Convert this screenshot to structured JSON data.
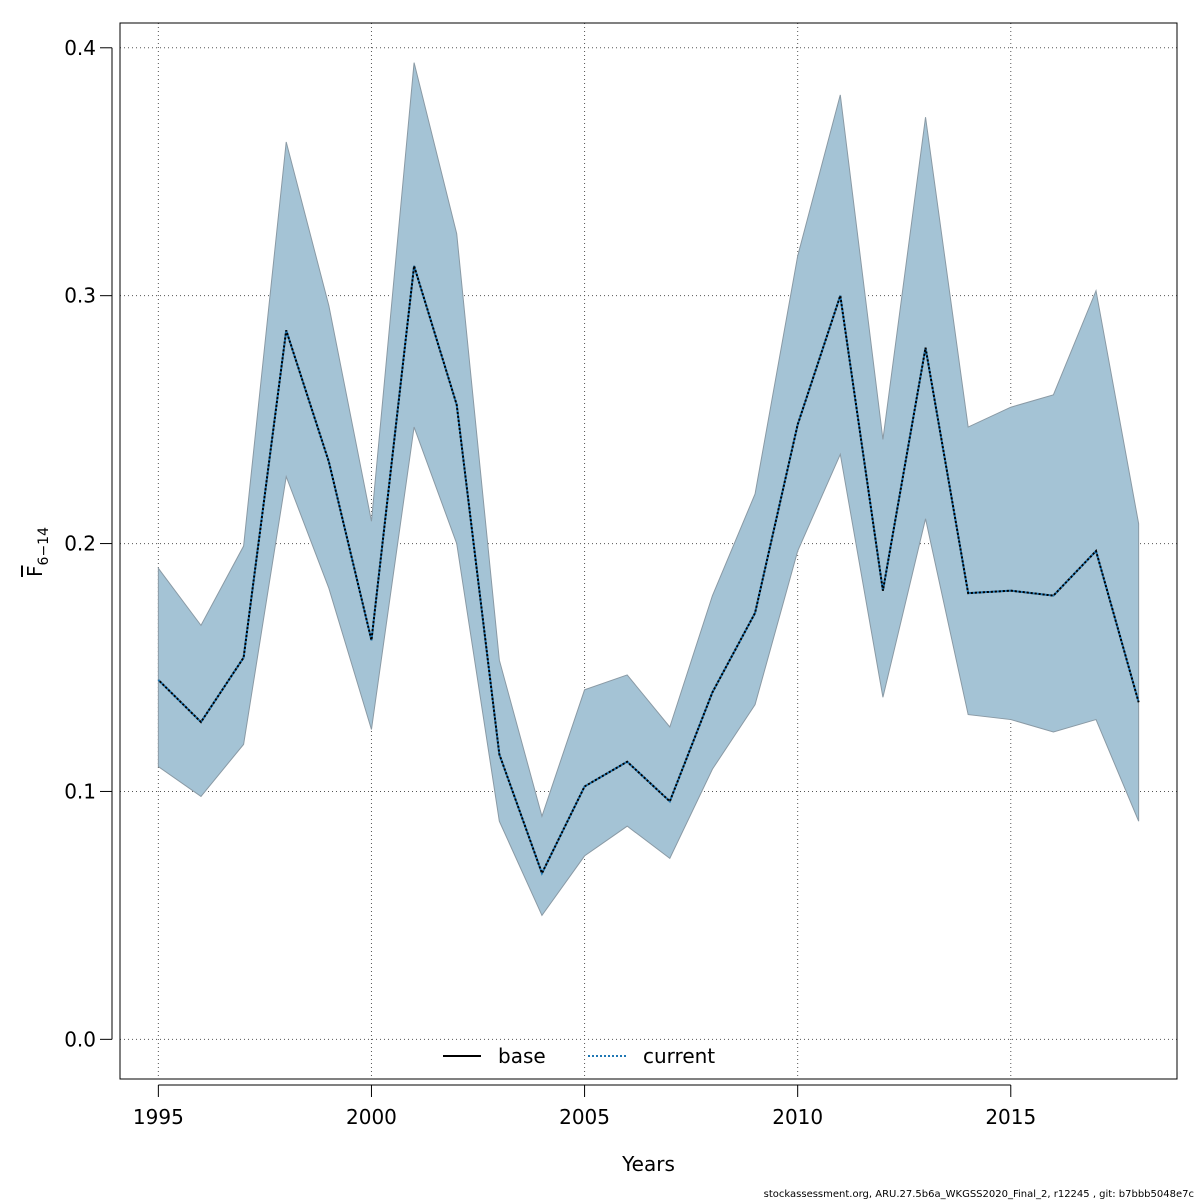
{
  "chart_data": {
    "type": "line",
    "xlabel": "Years",
    "ylabel": {
      "main": "F",
      "sub": "6−14"
    },
    "xlim": [
      1994.1,
      2018.9
    ],
    "ylim": [
      -0.016,
      0.41
    ],
    "xticks": [
      1995,
      2000,
      2005,
      2010,
      2015
    ],
    "yticks": [
      0.0,
      0.1,
      0.2,
      0.3,
      0.4
    ],
    "ytick_labels": [
      "0.0",
      "0.1",
      "0.2",
      "0.3",
      "0.4"
    ],
    "grid": true,
    "legend_position": "bottom-center",
    "x": [
      1995,
      1996,
      1997,
      1998,
      1999,
      2000,
      2001,
      2002,
      2003,
      2004,
      2005,
      2006,
      2007,
      2008,
      2009,
      2010,
      2011,
      2012,
      2013,
      2014,
      2015,
      2016,
      2017,
      2018
    ],
    "series": [
      {
        "name": "base",
        "style": "solid",
        "color": "#000000",
        "values": [
          0.145,
          0.128,
          0.154,
          0.286,
          0.233,
          0.161,
          0.312,
          0.256,
          0.115,
          0.067,
          0.102,
          0.112,
          0.096,
          0.14,
          0.172,
          0.248,
          0.3,
          0.181,
          0.279,
          0.18,
          0.181,
          0.179,
          0.197,
          0.136
        ]
      },
      {
        "name": "current",
        "style": "dotted",
        "color": "#1f77b4",
        "values": [
          0.145,
          0.128,
          0.154,
          0.286,
          0.233,
          0.161,
          0.312,
          0.256,
          0.115,
          0.067,
          0.102,
          0.112,
          0.096,
          0.14,
          0.172,
          0.248,
          0.3,
          0.181,
          0.279,
          0.18,
          0.181,
          0.179,
          0.197,
          0.136
        ]
      }
    ],
    "band": {
      "color": "#a4c3d5",
      "lower": [
        0.11,
        0.098,
        0.119,
        0.227,
        0.182,
        0.125,
        0.247,
        0.2,
        0.088,
        0.05,
        0.074,
        0.086,
        0.073,
        0.109,
        0.135,
        0.197,
        0.236,
        0.138,
        0.21,
        0.131,
        0.129,
        0.124,
        0.129,
        0.088
      ],
      "upper": [
        0.19,
        0.167,
        0.199,
        0.362,
        0.296,
        0.209,
        0.394,
        0.325,
        0.153,
        0.09,
        0.141,
        0.147,
        0.126,
        0.179,
        0.22,
        0.316,
        0.381,
        0.242,
        0.372,
        0.247,
        0.255,
        0.26,
        0.302,
        0.208
      ]
    }
  },
  "footer": "stockassessment.org, ARU.27.5b6a_WKGSS2020_Final_2, r12245 , git: b7bbb5048e7c"
}
